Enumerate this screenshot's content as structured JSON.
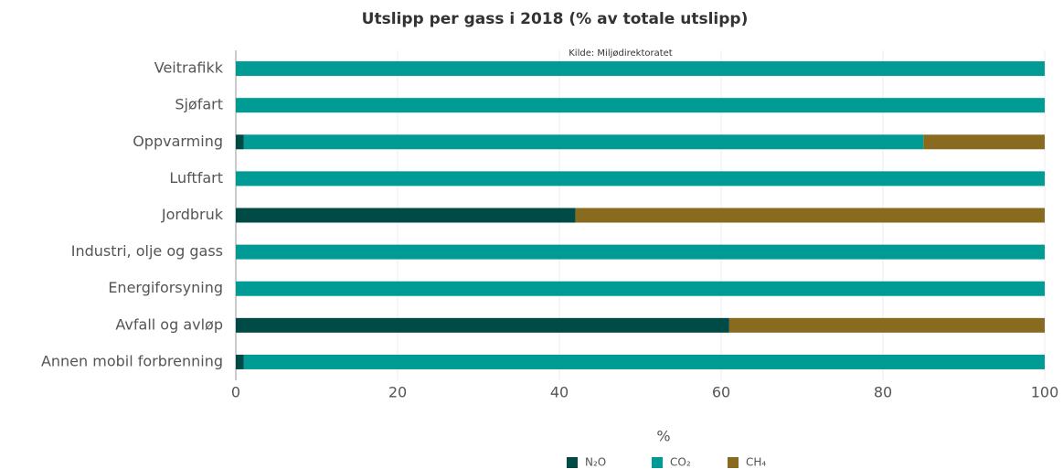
{
  "chart_data": {
    "type": "stacked-bar-horizontal",
    "title": "Utslipp per gass i 2018 (% av totale utslipp)",
    "source": "Kilde: Miljødirektoratet",
    "x_label": "%",
    "categories": [
      "Veitrafikk",
      "Sjøfart",
      "Oppvarming",
      "Luftfart",
      "Jordbruk",
      "Industri, olje og gass",
      "Energiforsyning",
      "Avfall og avløp",
      "Annen mobil forbrenning"
    ],
    "series": [
      {
        "name": "N₂O",
        "color": "#004b45",
        "values": [
          0,
          0,
          1,
          0,
          42,
          0,
          0,
          61,
          1
        ]
      },
      {
        "name": "CO₂",
        "color": "#009b94",
        "values": [
          100,
          100,
          84,
          100,
          0,
          100,
          100,
          0,
          99
        ]
      },
      {
        "name": "CH₄",
        "color": "#886b1f",
        "values": [
          0,
          0,
          15,
          0,
          58,
          0,
          0,
          39,
          0
        ]
      }
    ],
    "xlim": [
      0,
      100
    ],
    "xticks": [
      0,
      20,
      40,
      60,
      80,
      100
    ],
    "grid": true,
    "legend": "bottom"
  }
}
